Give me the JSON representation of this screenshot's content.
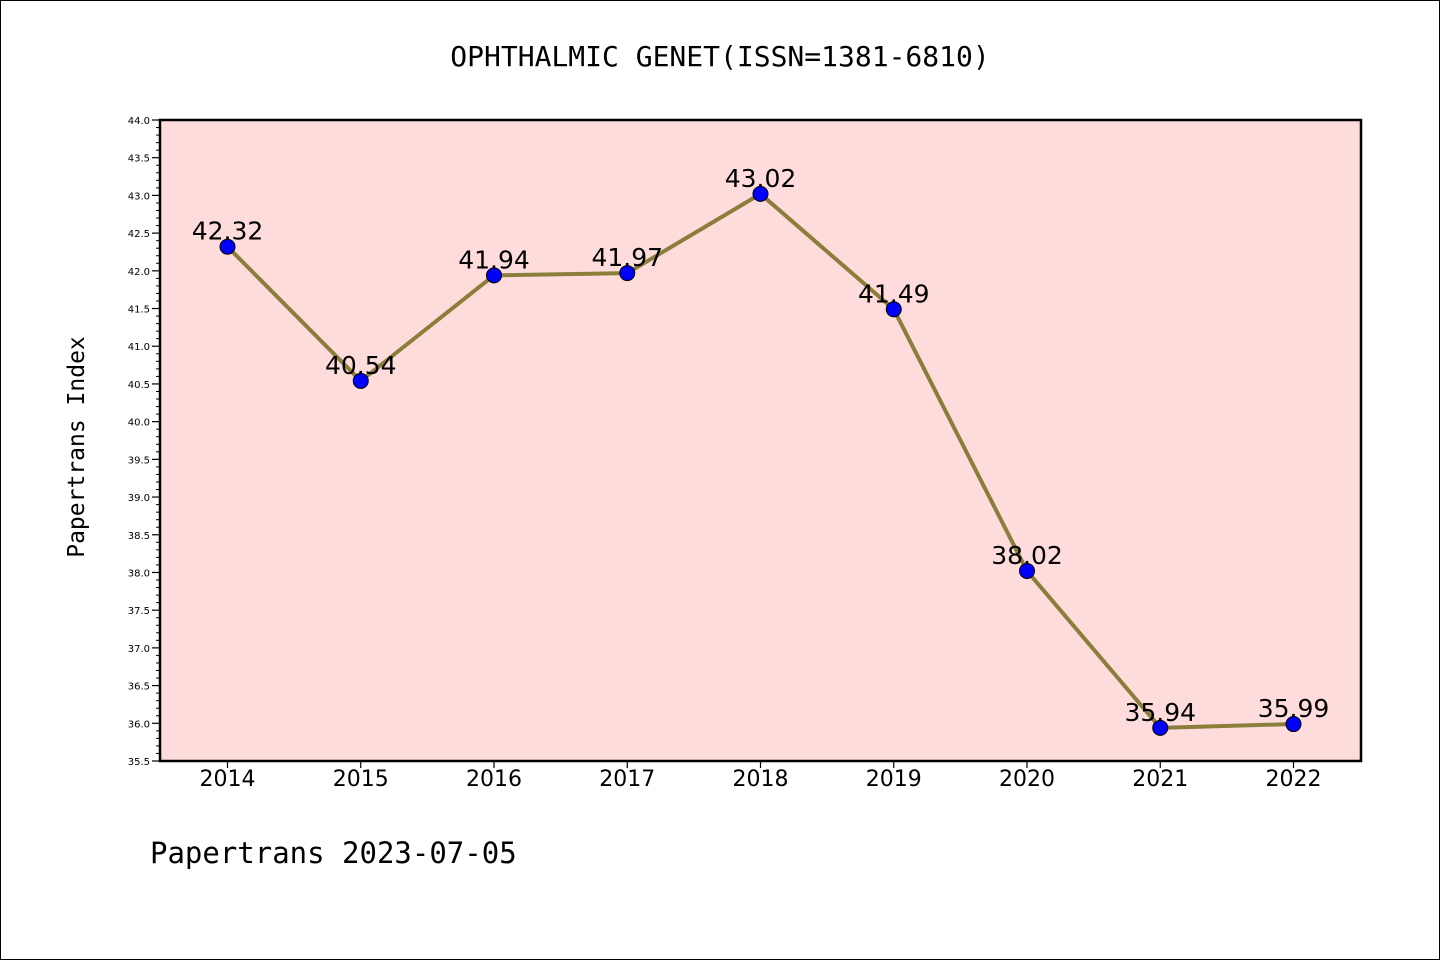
{
  "chart_data": {
    "type": "line",
    "title": "OPHTHALMIC GENET(ISSN=1381-6810)",
    "ylabel": "Papertrans Index",
    "xlabel": "",
    "footer": "Papertrans 2023-07-05",
    "categories": [
      "2014",
      "2015",
      "2016",
      "2017",
      "2018",
      "2019",
      "2020",
      "2021",
      "2022"
    ],
    "values": [
      42.32,
      40.54,
      41.94,
      41.97,
      43.02,
      41.49,
      38.02,
      35.94,
      35.99
    ],
    "value_labels": [
      "42.32",
      "40.54",
      "41.94",
      "41.97",
      "43.02",
      "41.49",
      "38.02",
      "35.94",
      "35.99"
    ],
    "ylim": [
      35.5,
      44.0
    ],
    "yticks": [
      "35.5",
      "36.0",
      "36.5",
      "37.0",
      "37.5",
      "38.0",
      "38.5",
      "39.0",
      "39.5",
      "40.0",
      "40.5",
      "41.0",
      "41.5",
      "42.0",
      "42.5",
      "43.0",
      "43.5",
      "44.0"
    ],
    "grid": false,
    "colors": {
      "plot_background": "#ffdcdc",
      "line": "#8b7d3a",
      "marker": "#0000ff"
    }
  }
}
